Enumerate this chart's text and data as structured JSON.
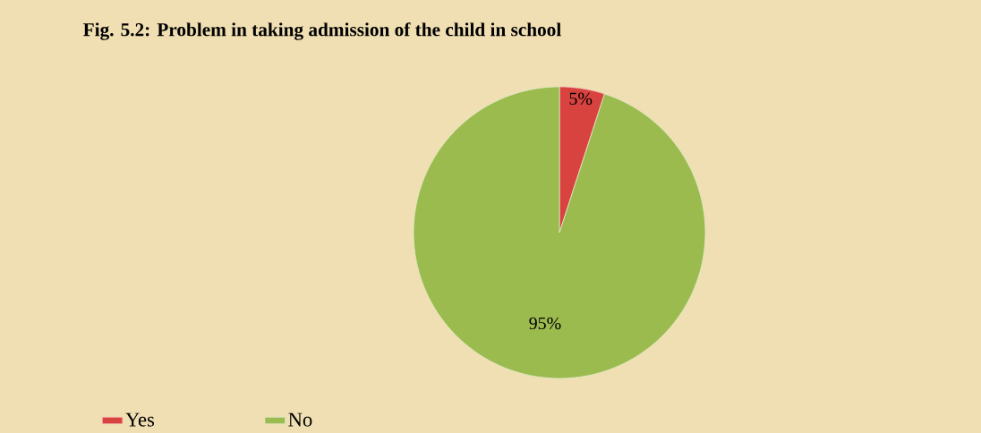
{
  "chart_data": {
    "type": "pie",
    "title": "Fig. 5.2: Problem in taking admission of the child in school",
    "categories": [
      "Yes",
      "No"
    ],
    "values": [
      5,
      95
    ],
    "colors": [
      "#d9433f",
      "#9bbb4f"
    ],
    "value_labels": [
      "5%",
      "95%"
    ],
    "legend": "bottom left"
  }
}
